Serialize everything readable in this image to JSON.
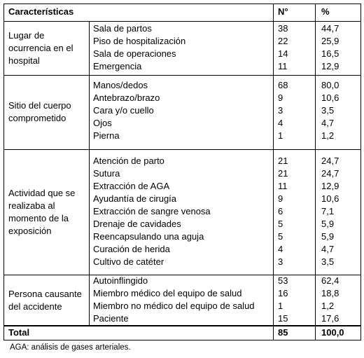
{
  "table": {
    "header": [
      "Características",
      "N°",
      "%"
    ],
    "groups": [
      {
        "label": "Lugar de ocurrencia en el hospital",
        "rows": [
          [
            "Sala de partos",
            "38",
            "44,7"
          ],
          [
            "Piso de hospitalización",
            "22",
            "25,9"
          ],
          [
            "Sala de operaciones",
            "14",
            "16,5"
          ],
          [
            "Emergencia",
            "11",
            "12,9"
          ]
        ]
      },
      {
        "label": "Sitio del cuerpo comprometido",
        "rows": [
          [
            "Manos/dedos",
            "68",
            "80,0"
          ],
          [
            "Antebrazo/brazo",
            "9",
            "10,6"
          ],
          [
            "Cara y/o cuello",
            "3",
            "3,5"
          ],
          [
            "Ojos",
            "4",
            "4,7"
          ],
          [
            "Pierna",
            "1",
            "1,2"
          ]
        ]
      },
      {
        "label": "Actividad que se realizaba al momento de la exposición",
        "rows": [
          [
            "Atención de parto",
            "21",
            "24,7"
          ],
          [
            "Sutura",
            "21",
            "24,7"
          ],
          [
            "Extracción de AGA",
            "11",
            "12,9"
          ],
          [
            "Ayudantía de cirugía",
            "9",
            "10,6"
          ],
          [
            "Extracción de sangre venosa",
            "6",
            "7,1"
          ],
          [
            "Drenaje de cavidades",
            "5",
            "5,9"
          ],
          [
            "Reencapsulando una aguja",
            "5",
            "5,9"
          ],
          [
            "Curación de herida",
            "4",
            "4,7"
          ],
          [
            "Cultivo de catéter",
            "3",
            "3,5"
          ]
        ]
      },
      {
        "label": "Persona causante del accidente",
        "rows": [
          [
            "Autoinflingido",
            "53",
            "62,4"
          ],
          [
            "Miembro médico del equipo de salud",
            "16",
            "18,8"
          ],
          [
            "Miembro no médico del equipo de salud",
            "1",
            "1,2"
          ],
          [
            "Paciente",
            "15",
            "17,6"
          ]
        ]
      }
    ],
    "total": [
      "Total",
      "85",
      "100,0"
    ]
  },
  "footnote": "AGA: análisis de gases arteriales."
}
